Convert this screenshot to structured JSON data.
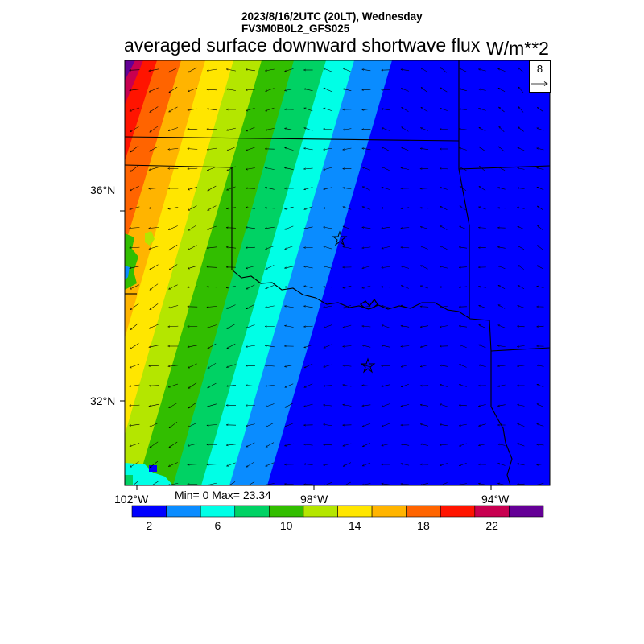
{
  "header": {
    "datetime": "2023/8/16/2UTC (20LT), Wednesday",
    "run": "FV3M0B0L2_GFS025"
  },
  "title": "averaged surface downward shortwave flux",
  "units": "W/m**2",
  "lat_labels": [
    "36°N",
    "32°N"
  ],
  "lon_labels": [
    "102°W",
    "98°W",
    "94°W"
  ],
  "stats": "Min= 0 Max= 23.34",
  "reference_vector": {
    "value": "8"
  },
  "colorbar": {
    "colors": [
      "#0000ff",
      "#0a8cff",
      "#00ffe6",
      "#00d264",
      "#32be00",
      "#b4e600",
      "#ffe600",
      "#ffb400",
      "#ff6400",
      "#ff1400",
      "#c80050",
      "#640096"
    ],
    "tick_labels": [
      "2",
      "6",
      "10",
      "14",
      "18",
      "22"
    ]
  }
}
